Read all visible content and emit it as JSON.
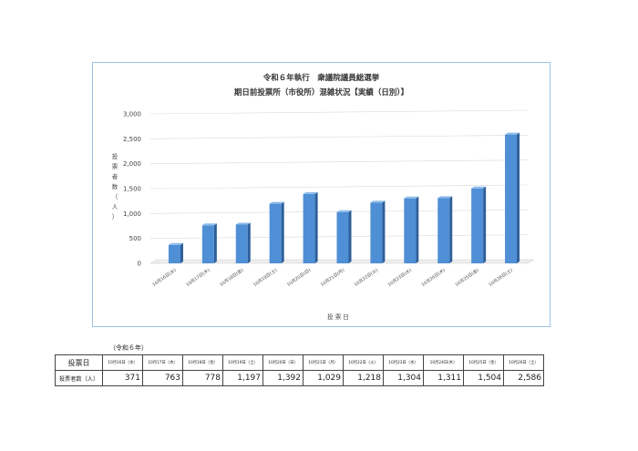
{
  "chart_data": {
    "type": "bar",
    "title_line1": "令和６年執行　衆議院議員総選挙",
    "title_line2": "期日前投票所（市役所）混雑状況【実績（日別）】",
    "ylabel": "投票者数（人）",
    "xlabel": "投 票 日",
    "ylim": [
      0,
      3000
    ],
    "yticks": [
      "0",
      "500",
      "1,000",
      "1,500",
      "2,000",
      "2,500",
      "3,000"
    ],
    "categories": [
      "10月16日(水)",
      "10月17日(木)",
      "10月18日(金)",
      "10月19日(土)",
      "10月20日(日)",
      "10月21日(月)",
      "10月22日(火)",
      "10月23日(水)",
      "10月24日(木)",
      "10月25日(金)",
      "10月26日(土)"
    ],
    "values": [
      371,
      763,
      778,
      1197,
      1392,
      1029,
      1218,
      1304,
      1311,
      1504,
      2586
    ],
    "colors": {
      "bar_front": "#4f8fd6",
      "bar_side": "#2e5f9a",
      "bar_top": "#8dbbea",
      "frame": "#9dc3e6"
    }
  },
  "table": {
    "note": "（令和６年）",
    "header_label": "投票日",
    "row_label": "投票者数（人）",
    "dates": [
      "10月16日（水）",
      "10月17日（木）",
      "10月18日（金）",
      "10月19日（土）",
      "10月20日（日）",
      "10月21日（月）",
      "10月22日（火）",
      "10月23日（水）",
      "10月24日(木）",
      "10月25日（金）",
      "10月26日（土）"
    ],
    "values": [
      "371",
      "763",
      "778",
      "1,197",
      "1,392",
      "1,029",
      "1,218",
      "1,304",
      "1,311",
      "1,504",
      "2,586"
    ]
  }
}
